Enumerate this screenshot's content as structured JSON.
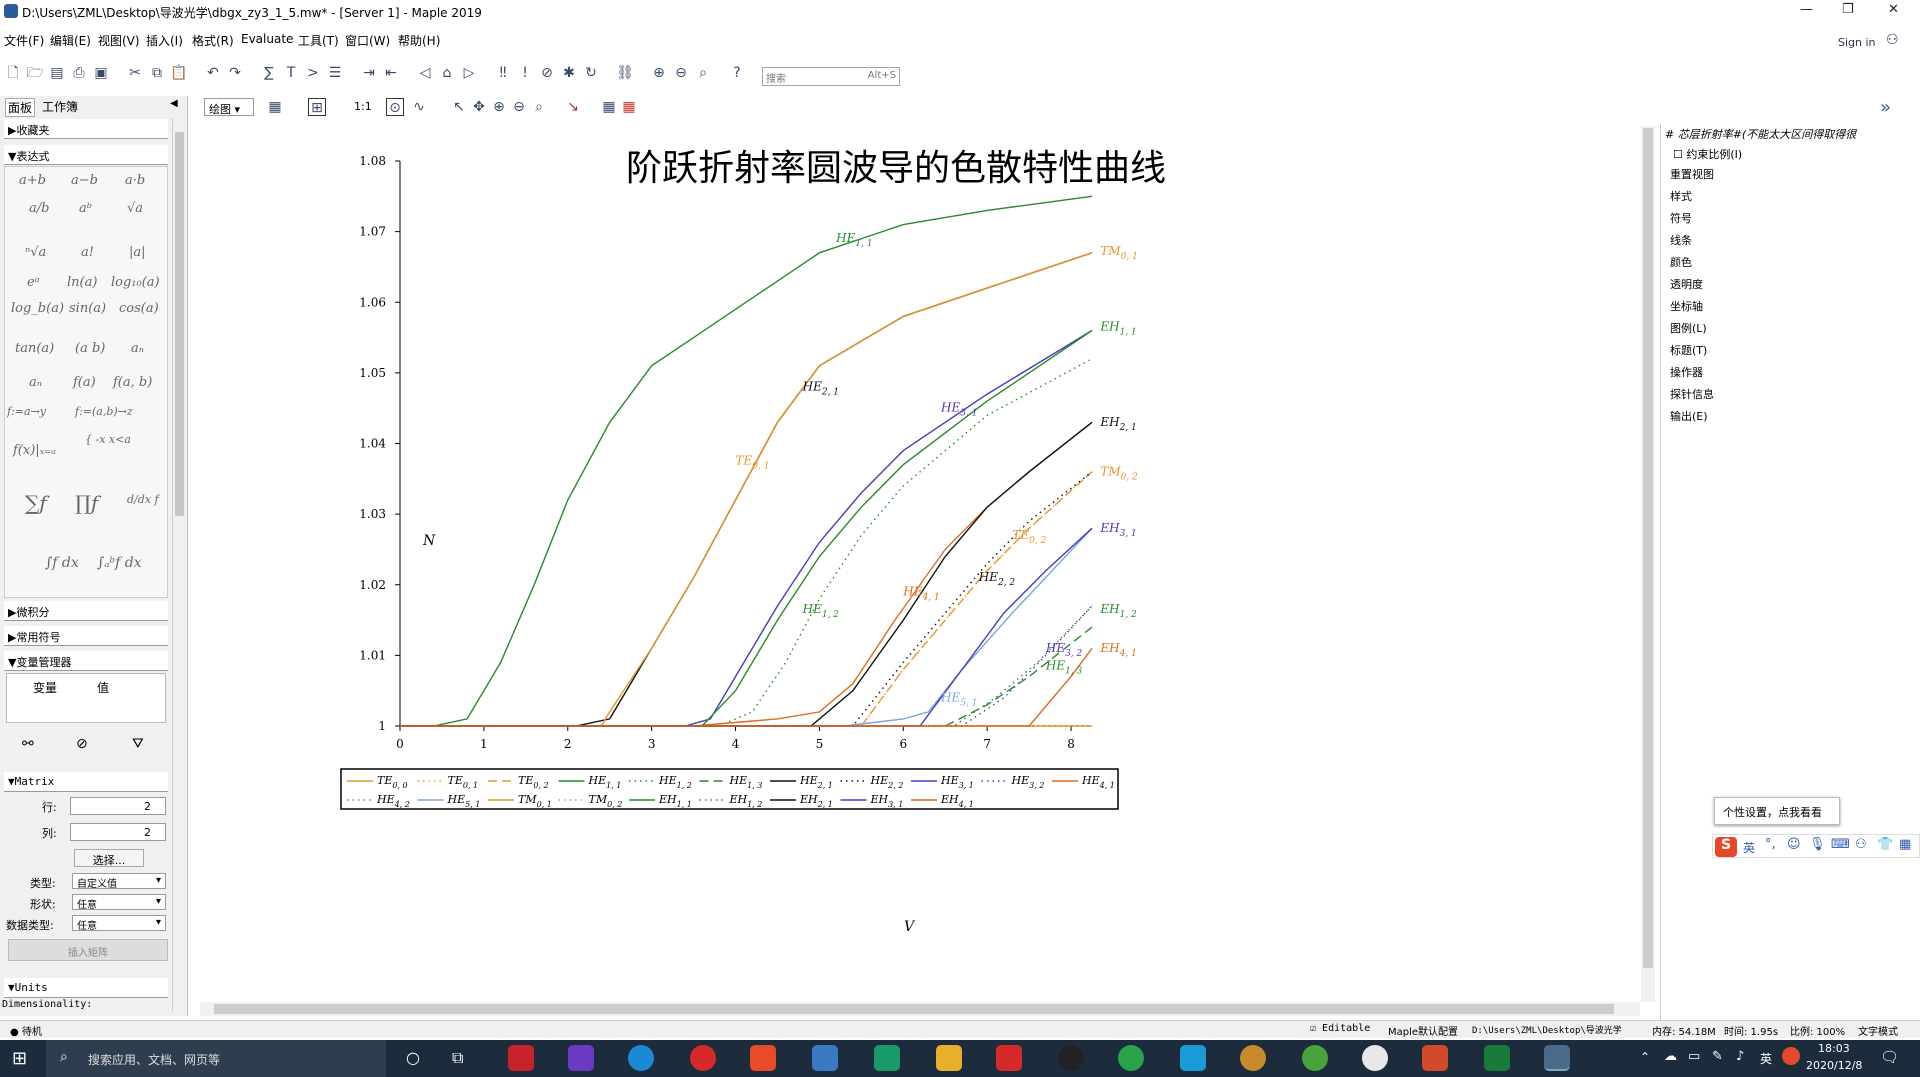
{
  "window": {
    "title": "D:\\Users\\ZML\\Desktop\\导波光学\\dbgx_zy3_1_5.mw* - [Server 1] - Maple 2019",
    "sign_in": "Sign in"
  },
  "menu": [
    "文件(F)",
    "编辑(E)",
    "视图(V)",
    "插入(I)",
    "格式(R)",
    "Evaluate",
    "工具(T)",
    "窗口(W)",
    "帮助(H)"
  ],
  "search": {
    "placeholder": "搜索",
    "shortcut": "Alt+S"
  },
  "plot_toolbar": {
    "mode": "绘图",
    "ratio": "1:1"
  },
  "palette": {
    "tabs": [
      "面板",
      "工作簿"
    ],
    "sections": {
      "favorites": "▶收藏夹",
      "expressions": "▼表达式",
      "calculus": "▶微积分",
      "symbols": "▶常用符号",
      "varmgr": "▼变量管理器",
      "matrix": "▼Matrix",
      "units": "▼Units"
    },
    "expr_rows": [
      [
        "a+b",
        "a−b",
        "a·b"
      ],
      [
        "a/b",
        "aᵇ",
        "√a"
      ],
      [
        "ⁿ√a",
        "a!",
        "|a|"
      ],
      [
        "eᵃ",
        "ln(a)",
        "log₁₀(a)"
      ],
      [
        "log_b(a)",
        "sin(a)",
        "cos(a)"
      ],
      [
        "tan(a)",
        "(a b)",
        "aₙ"
      ],
      [
        "aₙ",
        "f(a)",
        "f(a, b)"
      ],
      [
        "f:=a→y",
        "f:=(a,b)→z",
        ""
      ]
    ],
    "var_headers": [
      "变量",
      "值"
    ],
    "matrix": {
      "rows_label": "行:",
      "rows": "2",
      "cols_label": "列:",
      "cols": "2",
      "choose": "选择...",
      "type_label": "类型:",
      "type": "自定义值",
      "shape_label": "形状:",
      "shape": "任意",
      "dtype_label": "数据类型:",
      "dtype": "任意",
      "insert": "插入矩阵"
    },
    "units_line": "Dimensionality:"
  },
  "right_panel": {
    "header": "# 芯层折射率#(不能太大区间得取得很",
    "constrain": "约束比例(I)",
    "items": [
      "重置视图",
      "样式",
      "符号",
      "线条",
      "颜色",
      "透明度",
      "坐标轴",
      "图例(L)",
      "标题(T)",
      "操作器",
      "探针信息",
      "输出(E)"
    ]
  },
  "popup": "个性设置，点我看看",
  "ime": [
    "英"
  ],
  "status": {
    "left": "待机",
    "editable": "Editable",
    "config": "Maple默认配置",
    "path": "D:\\Users\\ZML\\Desktop\\导波光学",
    "mem": "内存: 54.18M",
    "time": "时间: 1.95s",
    "scale": "比例: 100%",
    "mode": "文字模式"
  },
  "taskbar": {
    "search": "搜索应用、文档、网页等",
    "time": "18:03",
    "date": "2020/12/8",
    "lang": "英"
  },
  "chart_data": {
    "type": "line",
    "title": "阶跃折射率圆波导的色散特性曲线",
    "xlabel": "V",
    "ylabel": "N",
    "xlim": [
      0,
      8.25
    ],
    "ylim": [
      1,
      1.08
    ],
    "xticks": [
      0,
      1,
      2,
      3,
      4,
      5,
      6,
      7,
      8
    ],
    "yticks": [
      1,
      1.01,
      1.02,
      1.03,
      1.04,
      1.05,
      1.06,
      1.07,
      1.08
    ],
    "ytick_labels": [
      "1",
      "1.01",
      "1.02",
      "1.03",
      "1.04",
      "1.05",
      "1.06",
      "1.07",
      "1.08"
    ],
    "legend_position": "bottom",
    "series": [
      {
        "name": "TE0,0",
        "color": "#e8962a",
        "style": "solid",
        "legend_only": true,
        "points": [
          [
            0,
            1
          ],
          [
            8.25,
            1
          ]
        ]
      },
      {
        "name": "TE0,1",
        "color": "#e8962a",
        "style": "dot",
        "points": [
          [
            0,
            1
          ],
          [
            2.4,
            1
          ],
          [
            2.5,
            1.002
          ],
          [
            3,
            1.011
          ],
          [
            3.5,
            1.021
          ],
          [
            4,
            1.032
          ],
          [
            4.5,
            1.043
          ],
          [
            5,
            1.051
          ],
          [
            6,
            1.058
          ],
          [
            7,
            1.062
          ],
          [
            8.25,
            1.067
          ]
        ]
      },
      {
        "name": "TE0,2",
        "color": "#e8962a",
        "style": "dash",
        "points": [
          [
            0,
            1
          ],
          [
            5.5,
            1
          ],
          [
            6,
            1.008
          ],
          [
            6.5,
            1.015
          ],
          [
            7,
            1.022
          ],
          [
            7.5,
            1.028
          ],
          [
            8.25,
            1.036
          ]
        ]
      },
      {
        "name": "HE1,1",
        "color": "#2a8a2a",
        "style": "solid",
        "points": [
          [
            0,
            1
          ],
          [
            0.4,
            1
          ],
          [
            0.8,
            1.001
          ],
          [
            1.2,
            1.009
          ],
          [
            1.6,
            1.02
          ],
          [
            2,
            1.032
          ],
          [
            2.5,
            1.043
          ],
          [
            3,
            1.051
          ],
          [
            3.5,
            1.055
          ],
          [
            4,
            1.059
          ],
          [
            4.5,
            1.063
          ],
          [
            5,
            1.067
          ],
          [
            6,
            1.071
          ],
          [
            7,
            1.073
          ],
          [
            8.25,
            1.075
          ]
        ]
      },
      {
        "name": "HE1,2",
        "color": "#2a8a2a",
        "style": "dot",
        "points": [
          [
            0,
            1
          ],
          [
            3.8,
            1
          ],
          [
            4.2,
            1.002
          ],
          [
            4.6,
            1.009
          ],
          [
            5,
            1.018
          ],
          [
            5.5,
            1.027
          ],
          [
            6,
            1.034
          ],
          [
            7,
            1.044
          ],
          [
            8.25,
            1.052
          ]
        ]
      },
      {
        "name": "HE1,3",
        "color": "#2a8a2a",
        "style": "dash",
        "points": [
          [
            0,
            1
          ],
          [
            6.5,
            1
          ],
          [
            7,
            1.003
          ],
          [
            7.5,
            1.007
          ],
          [
            8.25,
            1.014
          ]
        ]
      },
      {
        "name": "HE2,1",
        "color": "#111111",
        "style": "solid",
        "points": [
          [
            0,
            1
          ],
          [
            2.1,
            1
          ],
          [
            2.5,
            1.001
          ],
          [
            3,
            1.011
          ],
          [
            3.5,
            1.021
          ],
          [
            4,
            1.032
          ],
          [
            4.5,
            1.043
          ],
          [
            5,
            1.051
          ],
          [
            6,
            1.058
          ],
          [
            7,
            1.062
          ],
          [
            8.25,
            1.067
          ]
        ]
      },
      {
        "name": "HE2,2",
        "color": "#111111",
        "style": "dot",
        "points": [
          [
            0,
            1
          ],
          [
            5.4,
            1
          ],
          [
            6,
            1.009
          ],
          [
            6.5,
            1.016
          ],
          [
            7,
            1.023
          ],
          [
            7.5,
            1.029
          ],
          [
            8.25,
            1.036
          ]
        ]
      },
      {
        "name": "HE3,1",
        "color": "#4a3abf",
        "style": "solid",
        "points": [
          [
            0,
            1
          ],
          [
            3.4,
            1
          ],
          [
            3.7,
            1.001
          ],
          [
            4,
            1.007
          ],
          [
            4.5,
            1.017
          ],
          [
            5,
            1.026
          ],
          [
            5.5,
            1.033
          ],
          [
            6,
            1.039
          ],
          [
            7,
            1.047
          ],
          [
            8.25,
            1.056
          ]
        ]
      },
      {
        "name": "HE3,2",
        "color": "#4a3abf",
        "style": "dot",
        "points": [
          [
            0,
            1
          ],
          [
            6.7,
            1
          ],
          [
            7.2,
            1.004
          ],
          [
            7.7,
            1.01
          ],
          [
            8.25,
            1.017
          ]
        ]
      },
      {
        "name": "HE4,1",
        "color": "#e06a1e",
        "style": "solid",
        "points": [
          [
            0,
            1
          ],
          [
            3.5,
            1
          ],
          [
            4.5,
            1.001
          ],
          [
            5,
            1.002
          ],
          [
            5.4,
            1.006
          ],
          [
            5.9,
            1.015
          ],
          [
            6.5,
            1.025
          ],
          [
            7,
            1.031
          ],
          [
            7.5,
            1.036
          ],
          [
            8.25,
            1.043
          ]
        ]
      },
      {
        "name": "HE4,2",
        "color": "#e06a1e",
        "style": "dot",
        "legend_only": true,
        "points": [
          [
            0,
            1
          ],
          [
            8.25,
            1
          ]
        ]
      },
      {
        "name": "HE5,1",
        "color": "#7aa6da",
        "style": "solid",
        "points": [
          [
            0,
            1
          ],
          [
            5.3,
            1
          ],
          [
            6,
            1.001
          ],
          [
            6.3,
            1.002
          ],
          [
            6.7,
            1.008
          ],
          [
            7.3,
            1.016
          ],
          [
            8.25,
            1.028
          ]
        ]
      },
      {
        "name": "TM0,1",
        "color": "#e8962a",
        "style": "solid",
        "points": [
          [
            0,
            1
          ],
          [
            2.4,
            1
          ],
          [
            2.5,
            1.002
          ],
          [
            3,
            1.011
          ],
          [
            3.5,
            1.021
          ],
          [
            4,
            1.032
          ],
          [
            4.5,
            1.043
          ],
          [
            5,
            1.051
          ],
          [
            6,
            1.058
          ],
          [
            7,
            1.062
          ],
          [
            8.25,
            1.067
          ]
        ]
      },
      {
        "name": "TM0,2",
        "color": "#e8962a",
        "style": "dot",
        "points": [
          [
            0,
            1
          ],
          [
            5.5,
            1
          ],
          [
            6,
            1.008
          ],
          [
            6.5,
            1.015
          ],
          [
            7,
            1.022
          ],
          [
            7.5,
            1.028
          ],
          [
            8.25,
            1.036
          ]
        ]
      },
      {
        "name": "EH1,1",
        "color": "#2a8a2a",
        "style": "solid",
        "points": [
          [
            0,
            1
          ],
          [
            3.6,
            1
          ],
          [
            4,
            1.005
          ],
          [
            4.5,
            1.015
          ],
          [
            5,
            1.024
          ],
          [
            5.5,
            1.031
          ],
          [
            6,
            1.037
          ],
          [
            7,
            1.046
          ],
          [
            8.25,
            1.056
          ]
        ]
      },
      {
        "name": "EH1,2",
        "color": "#2a8a2a",
        "style": "dot",
        "points": [
          [
            0,
            1
          ],
          [
            6.6,
            1
          ],
          [
            7.1,
            1.004
          ],
          [
            7.6,
            1.009
          ],
          [
            8.25,
            1.017
          ]
        ]
      },
      {
        "name": "EH2,1",
        "color": "#111111",
        "style": "solid",
        "points": [
          [
            0,
            1
          ],
          [
            4.9,
            1
          ],
          [
            5.4,
            1.005
          ],
          [
            6,
            1.015
          ],
          [
            6.5,
            1.024
          ],
          [
            7,
            1.031
          ],
          [
            7.5,
            1.036
          ],
          [
            8.25,
            1.043
          ]
        ]
      },
      {
        "name": "EH3,1",
        "color": "#4a3abf",
        "style": "solid",
        "points": [
          [
            0,
            1
          ],
          [
            6.2,
            1
          ],
          [
            6.7,
            1.008
          ],
          [
            7.2,
            1.016
          ],
          [
            7.7,
            1.022
          ],
          [
            8.25,
            1.028
          ]
        ]
      },
      {
        "name": "EH4,1",
        "color": "#e06a1e",
        "style": "solid",
        "points": [
          [
            0,
            1
          ],
          [
            7.5,
            1
          ],
          [
            8,
            1.007
          ],
          [
            8.25,
            1.011
          ]
        ]
      }
    ],
    "annotations": [
      {
        "text": "HE",
        "sub": "1, 1",
        "x": 5.2,
        "y": 1.0685,
        "color": "#2a8a2a"
      },
      {
        "text": "TM",
        "sub": "0, 1",
        "x": 8.35,
        "y": 1.0667,
        "color": "#e8962a"
      },
      {
        "text": "EH",
        "sub": "1, 1",
        "x": 8.35,
        "y": 1.056,
        "color": "#2a8a2a"
      },
      {
        "text": "HE",
        "sub": "2, 1",
        "x": 4.8,
        "y": 1.0475,
        "color": "#111111"
      },
      {
        "text": "HE",
        "sub": "3, 1",
        "x": 6.45,
        "y": 1.0445,
        "color": "#4a3abf"
      },
      {
        "text": "EH",
        "sub": "2, 1",
        "x": 8.35,
        "y": 1.0425,
        "color": "#111111"
      },
      {
        "text": "TE",
        "sub": "0, 1",
        "x": 4,
        "y": 1.037,
        "color": "#e8962a"
      },
      {
        "text": "TM",
        "sub": "0, 2",
        "x": 8.35,
        "y": 1.0355,
        "color": "#e8962a"
      },
      {
        "text": "EH",
        "sub": "3, 1",
        "x": 8.35,
        "y": 1.0275,
        "color": "#4a3abf"
      },
      {
        "text": "TE",
        "sub": "0, 2",
        "x": 7.3,
        "y": 1.0265,
        "color": "#e8962a"
      },
      {
        "text": "HE",
        "sub": "2, 2",
        "x": 6.9,
        "y": 1.0205,
        "color": "#111111"
      },
      {
        "text": "HE",
        "sub": "4, 1",
        "x": 6,
        "y": 1.0185,
        "color": "#e06a1e"
      },
      {
        "text": "HE",
        "sub": "1, 2",
        "x": 4.8,
        "y": 1.016,
        "color": "#2a8a2a"
      },
      {
        "text": "EH",
        "sub": "1, 2",
        "x": 8.35,
        "y": 1.016,
        "color": "#2a8a2a"
      },
      {
        "text": "HE",
        "sub": "3, 2",
        "x": 7.7,
        "y": 1.0105,
        "color": "#4a3abf"
      },
      {
        "text": "EH",
        "sub": "4, 1",
        "x": 8.35,
        "y": 1.0105,
        "color": "#e06a1e"
      },
      {
        "text": "HE",
        "sub": "1, 3",
        "x": 7.7,
        "y": 1.008,
        "color": "#2a8a2a"
      },
      {
        "text": "HE",
        "sub": "5, 1",
        "x": 6.45,
        "y": 1.0035,
        "color": "#7aa6da"
      }
    ],
    "legend": [
      {
        "text": "TE",
        "sub": "0, 0",
        "color": "#e8962a",
        "style": "solid"
      },
      {
        "text": "TE",
        "sub": "0, 1",
        "color": "#e8962a",
        "style": "dot"
      },
      {
        "text": "TE",
        "sub": "0, 2",
        "color": "#e8962a",
        "style": "dash"
      },
      {
        "text": "HE",
        "sub": "1, 1",
        "color": "#2a8a2a",
        "style": "solid"
      },
      {
        "text": "HE",
        "sub": "1, 2",
        "color": "#2a8a2a",
        "style": "dot"
      },
      {
        "text": "HE",
        "sub": "1, 3",
        "color": "#2a8a2a",
        "style": "dash"
      },
      {
        "text": "HE",
        "sub": "2, 1",
        "color": "#111111",
        "style": "solid"
      },
      {
        "text": "HE",
        "sub": "2, 2",
        "color": "#111111",
        "style": "dot"
      },
      {
        "text": "HE",
        "sub": "3, 1",
        "color": "#4a3abf",
        "style": "solid"
      },
      {
        "text": "HE",
        "sub": "3, 2",
        "color": "#4a3abf",
        "style": "dot"
      },
      {
        "text": "HE",
        "sub": "4, 1",
        "color": "#e06a1e",
        "style": "solid"
      },
      {
        "text": "HE",
        "sub": "4, 2",
        "color": "#e06a1e",
        "style": "dot"
      },
      {
        "text": "HE",
        "sub": "5, 1",
        "color": "#7aa6da",
        "style": "solid"
      },
      {
        "text": "TM",
        "sub": "0, 1",
        "color": "#e8962a",
        "style": "solid"
      },
      {
        "text": "TM",
        "sub": "0, 2",
        "color": "#e8962a",
        "style": "dot"
      },
      {
        "text": "EH",
        "sub": "1, 1",
        "color": "#2a8a2a",
        "style": "solid"
      },
      {
        "text": "EH",
        "sub": "1, 2",
        "color": "#2a8a2a",
        "style": "dot"
      },
      {
        "text": "EH",
        "sub": "2, 1",
        "color": "#111111",
        "style": "solid"
      },
      {
        "text": "EH",
        "sub": "3, 1",
        "color": "#4a3abf",
        "style": "solid"
      },
      {
        "text": "EH",
        "sub": "4, 1",
        "color": "#e06a1e",
        "style": "solid"
      }
    ]
  }
}
